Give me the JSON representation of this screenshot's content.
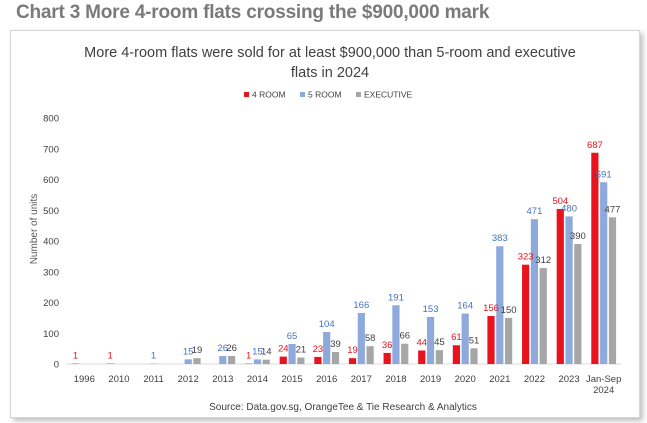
{
  "heading": "Chart 3 More 4-room flats crossing the $900,000 mark",
  "colors": {
    "four_room": "#e8131c",
    "five_room": "#8ea9db",
    "executive": "#a6a6a6",
    "four_room_label": "#e8131c",
    "five_room_label": "#4472c4",
    "executive_label": "#404040"
  },
  "chart_data": {
    "type": "bar",
    "title_line1": "More 4-room flats were sold for at least $900,000 than 5-room and executive",
    "title_line2": "flats in 2024",
    "ylabel": "Number of units",
    "xlabel": "",
    "ylim": [
      0,
      800
    ],
    "yticks": [
      0,
      100,
      200,
      300,
      400,
      500,
      600,
      700,
      800
    ],
    "grid": false,
    "legend_position": "top-center",
    "categories": [
      "1996",
      "2010",
      "2011",
      "2012",
      "2013",
      "2014",
      "2015",
      "2016",
      "2017",
      "2018",
      "2019",
      "2020",
      "2021",
      "2022",
      "2023",
      "Jan-Sep\n2024"
    ],
    "series": [
      {
        "name": "4 ROOM",
        "values": [
          1,
          1,
          0,
          0,
          0,
          1,
          24,
          23,
          19,
          36,
          44,
          61,
          156,
          323,
          504,
          687
        ],
        "labels": [
          "1",
          "1",
          "",
          "",
          "",
          "1",
          "24",
          "23",
          "19",
          "36",
          "44",
          "61",
          "156",
          "323",
          "504",
          "687"
        ]
      },
      {
        "name": "5 ROOM",
        "values": [
          0,
          0,
          1,
          15,
          26,
          15,
          65,
          104,
          166,
          191,
          153,
          164,
          383,
          471,
          480,
          591
        ],
        "labels": [
          "",
          "",
          "1",
          "15",
          "26",
          "15",
          "65",
          "104",
          "166",
          "191",
          "153",
          "164",
          "383",
          "471",
          "480",
          "591"
        ]
      },
      {
        "name": "EXECUTIVE",
        "values": [
          0,
          0,
          0,
          19,
          26,
          14,
          21,
          39,
          58,
          66,
          45,
          51,
          150,
          312,
          390,
          477
        ],
        "labels": [
          "",
          "",
          "",
          "19",
          "26",
          "14",
          "21",
          "39",
          "58",
          "66",
          "45",
          "51",
          "150",
          "312",
          "390",
          "477"
        ]
      }
    ],
    "source": "Source: Data.gov.sg, OrangeTee & Tie Research & Analytics"
  }
}
